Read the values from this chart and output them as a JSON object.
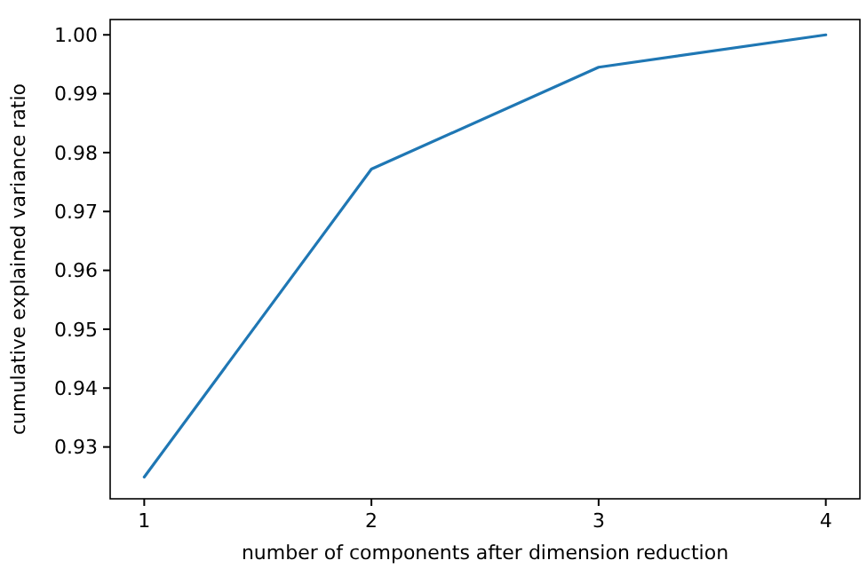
{
  "chart_data": {
    "type": "line",
    "xlabel": "number of components after dimension reduction",
    "ylabel": "cumulative explained variance ratio",
    "x": [
      1,
      2,
      3,
      4
    ],
    "series": [
      {
        "color": "#1f77b4",
        "values": [
          0.9249,
          0.9772,
          0.9945,
          1.0
        ]
      }
    ],
    "xlim": [
      0.85,
      4.15
    ],
    "xticks": [
      1,
      2,
      3,
      4
    ],
    "ylim": [
      0.9212,
      1.0026
    ],
    "yticks": [
      {
        "value": 0.93,
        "label": "0.93"
      },
      {
        "value": 0.94,
        "label": "0.94"
      },
      {
        "value": 0.95,
        "label": "0.95"
      },
      {
        "value": 0.96,
        "label": "0.96"
      },
      {
        "value": 0.97,
        "label": "0.97"
      },
      {
        "value": 0.98,
        "label": "0.98"
      },
      {
        "value": 0.99,
        "label": "0.99"
      },
      {
        "value": 1.0,
        "label": "1.00"
      }
    ]
  }
}
